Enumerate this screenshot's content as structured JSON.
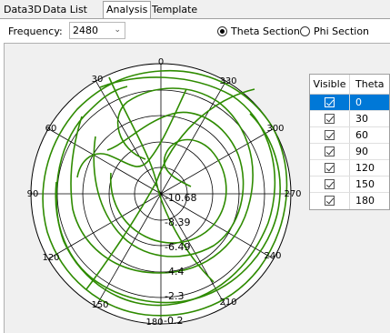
{
  "tabs": [
    {
      "label": "Data3D",
      "active": false
    },
    {
      "label": "Data List",
      "active": false
    },
    {
      "label": "Analysis",
      "active": true
    },
    {
      "label": "Template",
      "active": false
    }
  ],
  "toolbar": {
    "frequency_label": "Frequency:",
    "frequency_value": "2480",
    "section_options": [
      {
        "label": "Theta Section",
        "selected": true
      },
      {
        "label": "Phi Section",
        "selected": false
      }
    ]
  },
  "polar": {
    "angle_labels": [
      "0",
      "30",
      "60",
      "90",
      "120",
      "150",
      "180",
      "210",
      "240",
      "270",
      "300",
      "330"
    ],
    "radial_labels": [
      "-10.68",
      "-8.39",
      "-6.49",
      "-4.4",
      "-2.3",
      "-0.2"
    ],
    "curve_color": "#2e8b00"
  },
  "grid": {
    "headers": {
      "visible": "Visible",
      "theta": "Theta"
    },
    "rows": [
      {
        "theta": "0",
        "checked": true,
        "selected": true
      },
      {
        "theta": "30",
        "checked": true,
        "selected": false
      },
      {
        "theta": "60",
        "checked": true,
        "selected": false
      },
      {
        "theta": "90",
        "checked": true,
        "selected": false
      },
      {
        "theta": "120",
        "checked": true,
        "selected": false
      },
      {
        "theta": "150",
        "checked": true,
        "selected": false
      },
      {
        "theta": "180",
        "checked": true,
        "selected": false
      }
    ]
  }
}
